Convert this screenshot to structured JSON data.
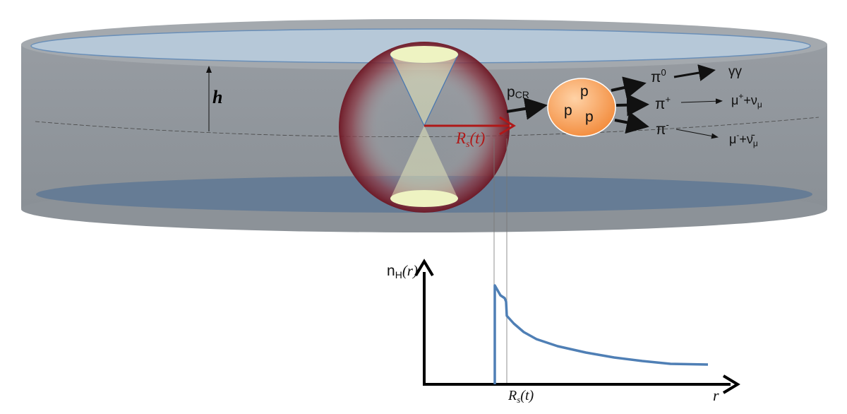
{
  "disk": {
    "height_label": "h",
    "colors": {
      "body": "#8e949b",
      "top": "#b6c8d8",
      "bottom": "#5f7894",
      "rim": "#6a8fb8"
    }
  },
  "bubble": {
    "radius_label_main": "R",
    "radius_label_sub": "s",
    "radius_label_tail": "(t)",
    "colors": {
      "shell": "#7b1e2a",
      "cone": "#f4f7c4",
      "arrow": "#b01818"
    }
  },
  "reaction": {
    "incoming": "p",
    "incoming_sub": "CR",
    "targets": [
      "p",
      "p",
      "p"
    ],
    "products": [
      {
        "particle": "π",
        "charge": "0",
        "decay": "γγ"
      },
      {
        "particle": "π",
        "charge": "+",
        "decay_html": [
          "μ",
          "+",
          "+ν",
          "μ"
        ]
      },
      {
        "particle": "π",
        "charge": "-",
        "decay_html": [
          "μ",
          "-",
          "+ν̄",
          "μ"
        ]
      }
    ],
    "colors": {
      "ball": "#f59a4c"
    }
  },
  "plot": {
    "ylabel_main": "n",
    "ylabel_sub": "H",
    "ylabel_tail": "(r)",
    "xlabel": "r",
    "xtick_main": "R",
    "xtick_sub": "s",
    "xtick_tail": "(t)",
    "colors": {
      "curve": "#4f7fb5"
    }
  }
}
